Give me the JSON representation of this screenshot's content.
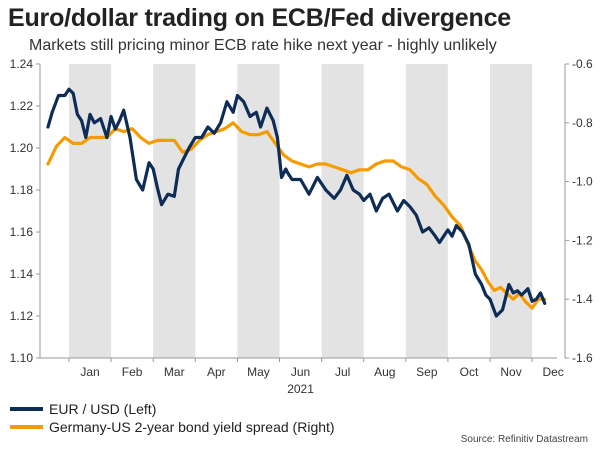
{
  "header": {
    "title": "Euro/dollar trading on ECB/Fed divergence",
    "subtitle": "Markets still pricing minor ECB rate hike next year - highly unlikely"
  },
  "source": "Source: Refinitiv Datastream",
  "chart_data": {
    "type": "line",
    "title": "Euro/dollar trading on ECB/Fed divergence",
    "subtitle": "Markets still pricing minor ECB rate hike next year - highly unlikely",
    "xlabel": "2021",
    "x_tick_labels": [
      "Jan",
      "Feb",
      "Mar",
      "Apr",
      "May",
      "Jun",
      "Jul",
      "Aug",
      "Sep",
      "Oct",
      "Nov",
      "Dec"
    ],
    "x_range_months": [
      0,
      11.5
    ],
    "shaded_months": [
      0,
      2,
      4,
      6,
      8,
      10
    ],
    "left_axis": {
      "ylim": [
        1.1,
        1.24
      ],
      "ticks": [
        "1.10",
        "1.12",
        "1.14",
        "1.16",
        "1.18",
        "1.20",
        "1.22",
        "1.24"
      ]
    },
    "right_axis": {
      "ylim": [
        -1.6,
        -0.6
      ],
      "ticks": [
        "-0.6",
        "-0.8",
        "-1.0",
        "-1.2",
        "-1.4",
        "-1.6"
      ]
    },
    "series": [
      {
        "name": "EUR / USD (Left)",
        "axis": "left",
        "color": "#0d2c56",
        "x": [
          -0.5,
          -0.4,
          -0.25,
          -0.1,
          0.0,
          0.1,
          0.2,
          0.3,
          0.4,
          0.5,
          0.6,
          0.75,
          0.9,
          1.0,
          1.1,
          1.2,
          1.3,
          1.45,
          1.6,
          1.75,
          1.9,
          2.0,
          2.1,
          2.2,
          2.35,
          2.5,
          2.6,
          2.75,
          2.85,
          3.0,
          3.15,
          3.3,
          3.45,
          3.6,
          3.75,
          3.9,
          4.0,
          4.15,
          4.3,
          4.45,
          4.55,
          4.7,
          4.85,
          4.95,
          5.05,
          5.15,
          5.2,
          5.3,
          5.5,
          5.7,
          5.9,
          6.1,
          6.3,
          6.45,
          6.6,
          6.75,
          6.9,
          7.0,
          7.15,
          7.3,
          7.45,
          7.6,
          7.8,
          7.95,
          8.1,
          8.25,
          8.4,
          8.55,
          8.7,
          8.8,
          8.9,
          9.0,
          9.1,
          9.2,
          9.35,
          9.5,
          9.65,
          9.8,
          9.9,
          10.0,
          10.15,
          10.3,
          10.45,
          10.55,
          10.65,
          10.75,
          10.9,
          11.0,
          11.1,
          11.2,
          11.3
        ],
        "values": [
          1.21,
          1.217,
          1.225,
          1.225,
          1.228,
          1.226,
          1.216,
          1.213,
          1.205,
          1.216,
          1.212,
          1.214,
          1.205,
          1.215,
          1.209,
          1.213,
          1.218,
          1.205,
          1.185,
          1.18,
          1.193,
          1.19,
          1.181,
          1.173,
          1.178,
          1.177,
          1.19,
          1.196,
          1.2,
          1.205,
          1.205,
          1.21,
          1.207,
          1.212,
          1.222,
          1.217,
          1.225,
          1.222,
          1.215,
          1.217,
          1.21,
          1.219,
          1.213,
          1.205,
          1.186,
          1.19,
          1.188,
          1.185,
          1.185,
          1.178,
          1.186,
          1.18,
          1.176,
          1.18,
          1.187,
          1.18,
          1.178,
          1.175,
          1.178,
          1.17,
          1.176,
          1.178,
          1.17,
          1.175,
          1.172,
          1.168,
          1.16,
          1.162,
          1.158,
          1.155,
          1.158,
          1.161,
          1.158,
          1.163,
          1.16,
          1.154,
          1.14,
          1.135,
          1.13,
          1.128,
          1.12,
          1.123,
          1.135,
          1.131,
          1.132,
          1.13,
          1.133,
          1.127,
          1.128,
          1.131,
          1.126
        ]
      },
      {
        "name": "Germany-US 2-year bond yield spread (Right)",
        "axis": "right",
        "color": "#f59b00",
        "x": [
          -0.5,
          -0.3,
          -0.1,
          0.1,
          0.3,
          0.5,
          0.7,
          0.9,
          1.1,
          1.3,
          1.5,
          1.7,
          1.9,
          2.1,
          2.3,
          2.5,
          2.7,
          2.9,
          3.1,
          3.3,
          3.5,
          3.7,
          3.9,
          4.1,
          4.3,
          4.5,
          4.7,
          4.9,
          5.1,
          5.3,
          5.5,
          5.7,
          5.9,
          6.1,
          6.3,
          6.5,
          6.7,
          6.9,
          7.1,
          7.3,
          7.5,
          7.7,
          7.9,
          8.1,
          8.3,
          8.5,
          8.7,
          8.9,
          9.1,
          9.3,
          9.5,
          9.65,
          9.8,
          9.95,
          10.1,
          10.25,
          10.4,
          10.55,
          10.7,
          10.85,
          11.0,
          11.15,
          11.3
        ],
        "values": [
          -0.94,
          -0.88,
          -0.85,
          -0.87,
          -0.87,
          -0.85,
          -0.85,
          -0.85,
          -0.82,
          -0.83,
          -0.82,
          -0.85,
          -0.87,
          -0.86,
          -0.86,
          -0.86,
          -0.9,
          -0.89,
          -0.86,
          -0.84,
          -0.83,
          -0.82,
          -0.8,
          -0.83,
          -0.84,
          -0.84,
          -0.83,
          -0.87,
          -0.91,
          -0.93,
          -0.94,
          -0.95,
          -0.94,
          -0.94,
          -0.95,
          -0.96,
          -0.97,
          -0.96,
          -0.96,
          -0.94,
          -0.93,
          -0.93,
          -0.95,
          -0.96,
          -0.99,
          -1.01,
          -1.05,
          -1.08,
          -1.12,
          -1.15,
          -1.22,
          -1.27,
          -1.3,
          -1.34,
          -1.37,
          -1.36,
          -1.38,
          -1.4,
          -1.38,
          -1.41,
          -1.43,
          -1.4,
          -1.4
        ]
      }
    ]
  }
}
